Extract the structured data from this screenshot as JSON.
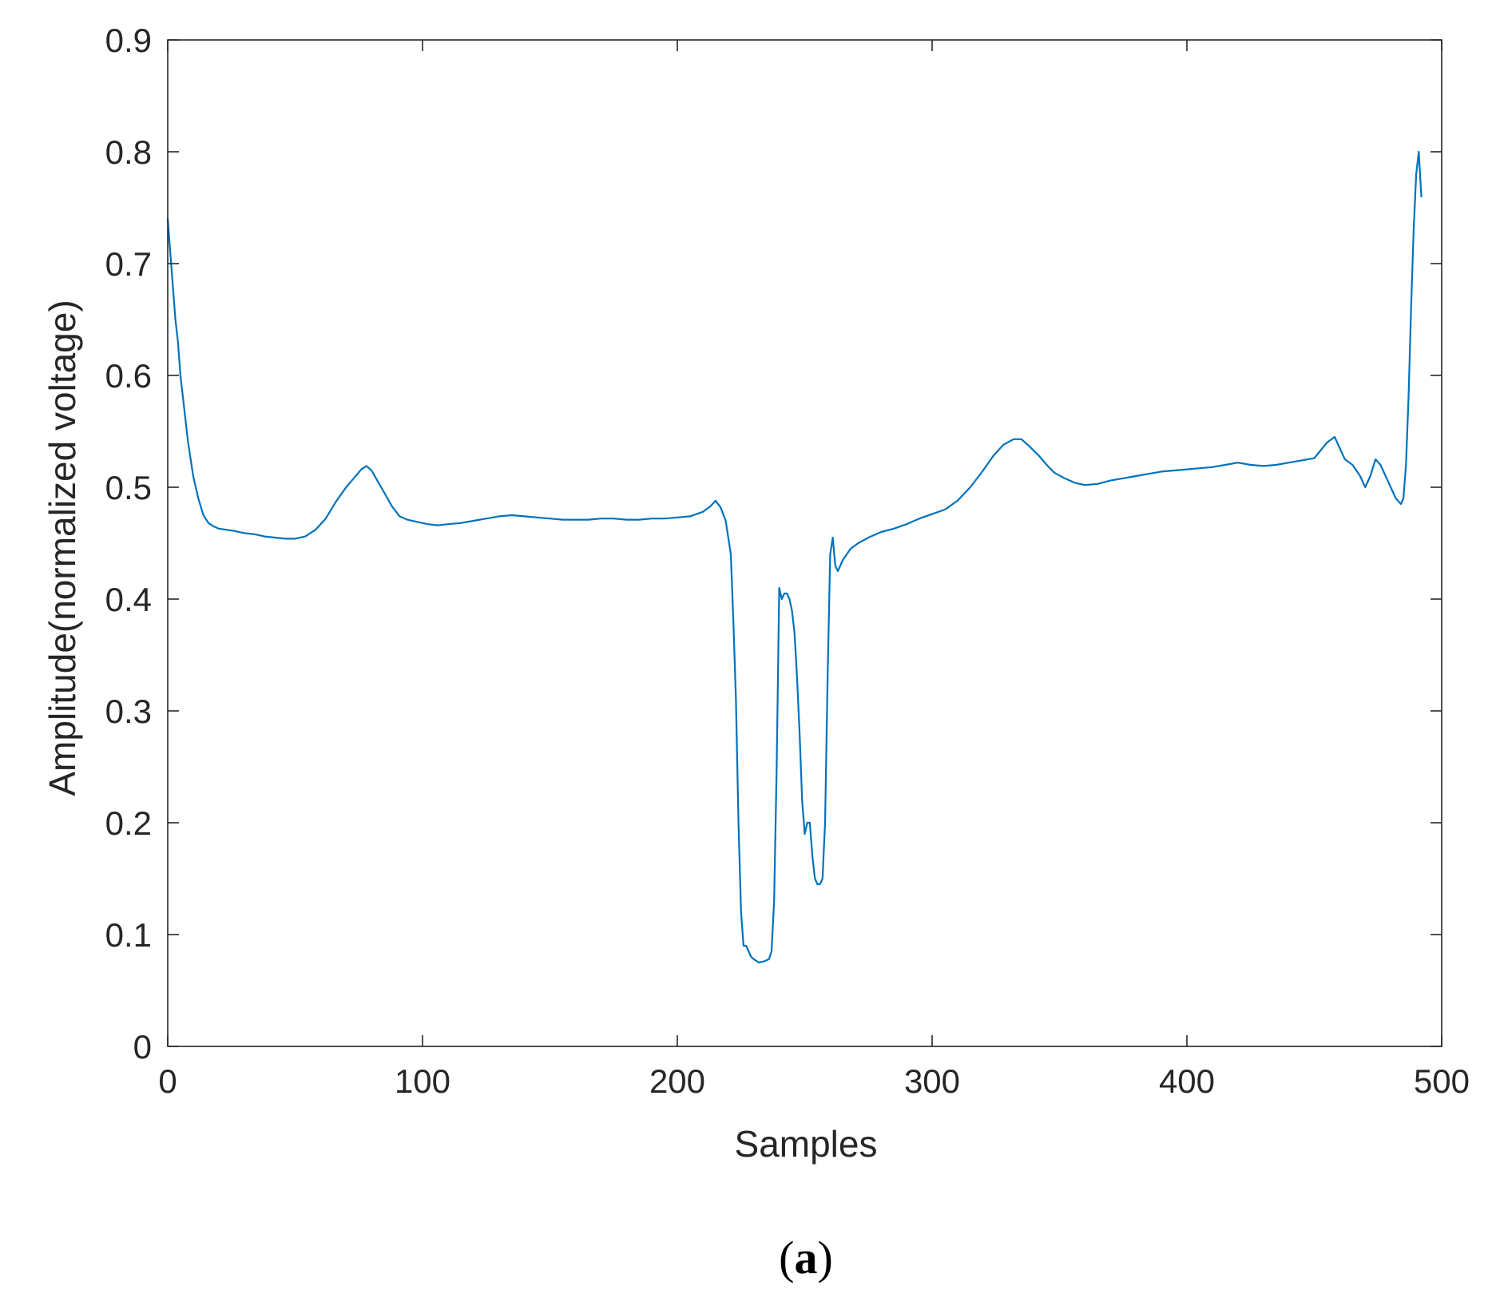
{
  "figure": {
    "panel_label_open": "(",
    "panel_label_letter": "a",
    "panel_label_close": ")"
  },
  "colors": {
    "line": "#0072BD",
    "axis": "#262626",
    "background": "#ffffff"
  },
  "chart_data": {
    "type": "line",
    "title": "",
    "xlabel": "Samples",
    "ylabel": "Amplitude(normalized voltage)",
    "xlim": [
      0,
      500
    ],
    "ylim": [
      0,
      0.9
    ],
    "xticks": [
      "0",
      "100",
      "200",
      "300",
      "400",
      "500"
    ],
    "yticks": [
      "0",
      "0.1",
      "0.2",
      "0.3",
      "0.4",
      "0.5",
      "0.6",
      "0.7",
      "0.8",
      "0.9"
    ],
    "grid": false,
    "box": true,
    "series": [
      {
        "x": [
          0,
          1,
          2,
          3,
          4,
          5,
          6,
          7,
          8,
          10,
          12,
          14,
          16,
          18,
          20,
          23,
          26,
          30,
          34,
          38,
          42,
          46,
          50,
          54,
          58,
          62,
          66,
          70,
          73,
          76,
          78,
          80,
          82,
          85,
          88,
          91,
          94,
          98,
          102,
          106,
          110,
          115,
          120,
          125,
          130,
          135,
          140,
          145,
          150,
          155,
          160,
          165,
          170,
          175,
          180,
          185,
          190,
          195,
          200,
          205,
          210,
          213,
          215,
          217,
          219,
          221,
          222,
          223,
          224,
          225,
          226,
          227,
          228,
          229,
          230,
          232,
          234,
          236,
          237,
          238,
          239,
          240,
          241,
          242,
          243,
          244,
          245,
          246,
          247,
          248,
          249,
          250,
          251,
          252,
          253,
          254,
          255,
          256,
          257,
          258,
          259,
          260,
          261,
          262,
          263,
          265,
          268,
          271,
          275,
          280,
          285,
          290,
          295,
          300,
          305,
          310,
          315,
          320,
          324,
          328,
          332,
          335,
          338,
          342,
          345,
          348,
          352,
          356,
          360,
          365,
          370,
          375,
          380,
          385,
          390,
          395,
          400,
          405,
          410,
          415,
          420,
          425,
          430,
          435,
          440,
          445,
          450,
          455,
          458,
          460,
          462,
          465,
          468,
          470,
          472,
          474,
          476,
          478,
          480,
          482,
          484,
          485,
          486,
          487,
          488,
          489,
          490,
          491,
          492
        ],
        "y": [
          0.74,
          0.71,
          0.68,
          0.65,
          0.63,
          0.6,
          0.58,
          0.56,
          0.54,
          0.51,
          0.49,
          0.475,
          0.468,
          0.465,
          0.463,
          0.462,
          0.461,
          0.459,
          0.458,
          0.456,
          0.455,
          0.454,
          0.454,
          0.456,
          0.462,
          0.472,
          0.487,
          0.5,
          0.508,
          0.516,
          0.519,
          0.515,
          0.507,
          0.495,
          0.483,
          0.474,
          0.471,
          0.469,
          0.467,
          0.466,
          0.467,
          0.468,
          0.47,
          0.472,
          0.474,
          0.475,
          0.474,
          0.473,
          0.472,
          0.471,
          0.471,
          0.471,
          0.472,
          0.472,
          0.471,
          0.471,
          0.472,
          0.472,
          0.473,
          0.474,
          0.478,
          0.483,
          0.488,
          0.482,
          0.47,
          0.44,
          0.38,
          0.31,
          0.2,
          0.12,
          0.09,
          0.09,
          0.085,
          0.08,
          0.078,
          0.075,
          0.076,
          0.078,
          0.085,
          0.13,
          0.25,
          0.41,
          0.4,
          0.405,
          0.405,
          0.4,
          0.39,
          0.37,
          0.33,
          0.28,
          0.22,
          0.19,
          0.2,
          0.2,
          0.17,
          0.15,
          0.145,
          0.145,
          0.15,
          0.2,
          0.33,
          0.44,
          0.455,
          0.43,
          0.425,
          0.435,
          0.445,
          0.45,
          0.455,
          0.46,
          0.463,
          0.467,
          0.472,
          0.476,
          0.48,
          0.488,
          0.5,
          0.515,
          0.528,
          0.538,
          0.543,
          0.543,
          0.537,
          0.528,
          0.52,
          0.513,
          0.508,
          0.504,
          0.502,
          0.503,
          0.506,
          0.508,
          0.51,
          0.512,
          0.514,
          0.515,
          0.516,
          0.517,
          0.518,
          0.52,
          0.522,
          0.52,
          0.519,
          0.52,
          0.522,
          0.524,
          0.526,
          0.54,
          0.545,
          0.535,
          0.525,
          0.52,
          0.51,
          0.5,
          0.51,
          0.525,
          0.52,
          0.51,
          0.5,
          0.49,
          0.485,
          0.49,
          0.52,
          0.58,
          0.66,
          0.73,
          0.78,
          0.8,
          0.76
        ]
      }
    ]
  }
}
